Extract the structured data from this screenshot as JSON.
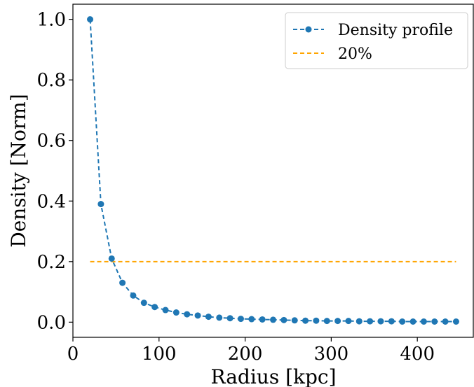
{
  "chart_data": {
    "type": "line",
    "xlabel": "Radius [kpc]",
    "ylabel": "Density [Norm]",
    "xlim": [
      0,
      465
    ],
    "ylim": [
      -0.05,
      1.05
    ],
    "xticks": [
      0,
      100,
      200,
      300,
      400
    ],
    "xtick_labels": [
      "0",
      "100",
      "200",
      "300",
      "400"
    ],
    "yticks": [
      0.0,
      0.2,
      0.4,
      0.6,
      0.8,
      1.0
    ],
    "ytick_labels": [
      "0.0",
      "0.2",
      "0.4",
      "0.6",
      "0.8",
      "1.0"
    ],
    "grid": false,
    "legend_position": "top-right",
    "series": [
      {
        "name": "Density profile",
        "color": "#1f77b4",
        "style": "dashed",
        "marker": "circle",
        "x": [
          20,
          32.5,
          45,
          57.5,
          70,
          82.5,
          95,
          107.5,
          120,
          132.5,
          145,
          157.5,
          170,
          182.5,
          195,
          207.5,
          220,
          232.5,
          245,
          257.5,
          270,
          282.5,
          295,
          307.5,
          320,
          332.5,
          345,
          357.5,
          370,
          382.5,
          395,
          407.5,
          420,
          432.5,
          445
        ],
        "y": [
          1.0,
          0.39,
          0.21,
          0.13,
          0.088,
          0.064,
          0.05,
          0.04,
          0.032,
          0.026,
          0.022,
          0.018,
          0.015,
          0.013,
          0.011,
          0.01,
          0.009,
          0.008,
          0.007,
          0.006,
          0.005,
          0.005,
          0.004,
          0.004,
          0.004,
          0.003,
          0.003,
          0.003,
          0.003,
          0.002,
          0.002,
          0.002,
          0.002,
          0.002,
          0.002
        ]
      },
      {
        "name": "20%",
        "color": "#ffa500",
        "style": "dashed",
        "marker": "none",
        "x": [
          20,
          445
        ],
        "y": [
          0.2,
          0.2
        ]
      }
    ]
  }
}
